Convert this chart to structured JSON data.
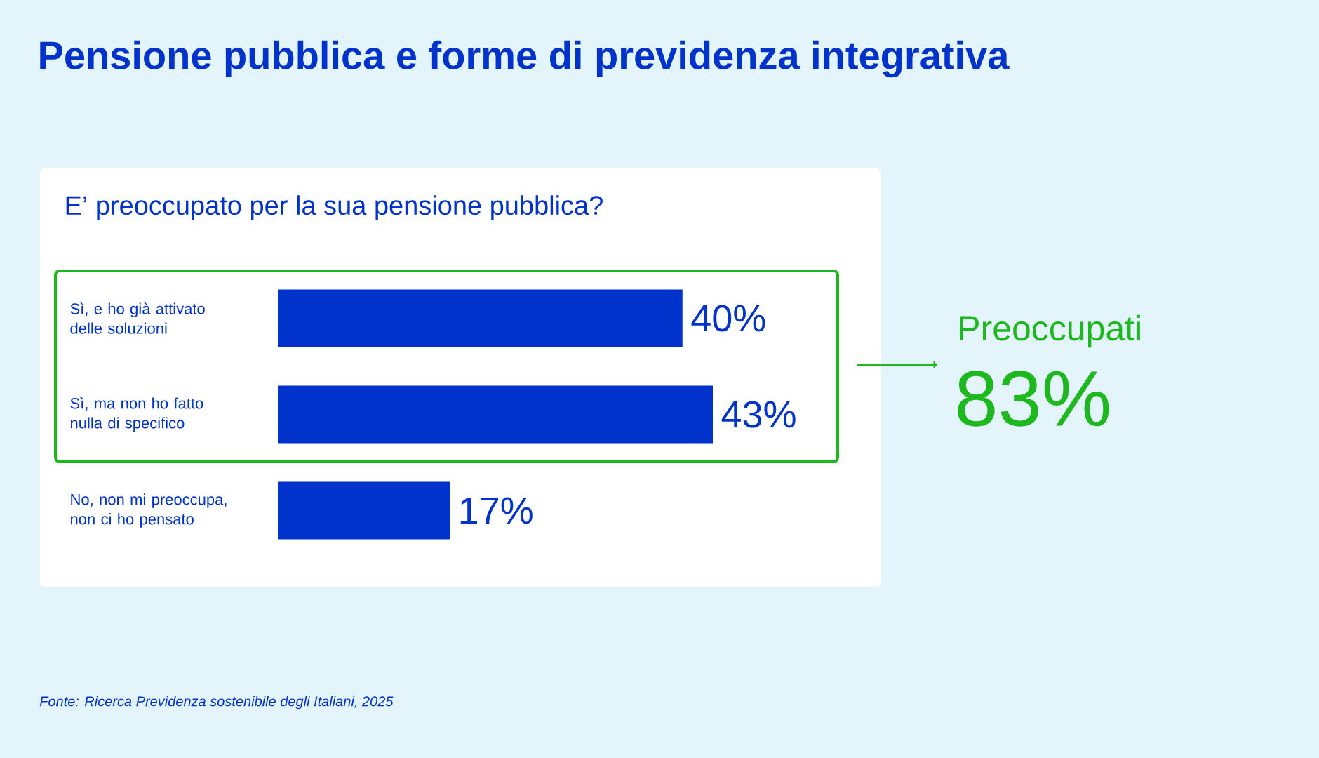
{
  "chart_data": {
    "type": "bar",
    "orientation": "horizontal",
    "title": "Pensione pubblica e forme di previdenza integrativa",
    "subtitle": "E’ preoccupato per la sua pensione pubblica?",
    "categories": [
      "Sì, e ho già attivato delle soluzioni",
      "Sì, ma non ho fatto nulla di specifico",
      "No, non mi preoccupa, non ci ho pensato"
    ],
    "values": [
      40,
      43,
      17
    ],
    "value_labels": [
      "40%",
      "43%",
      "17%"
    ],
    "color": "#0033cc",
    "annotations": [
      "Preoccupati",
      "83%",
      "Fonte: Ricerca Previdenza sostenibile degli Italiani, 2025"
    ]
  }
}
